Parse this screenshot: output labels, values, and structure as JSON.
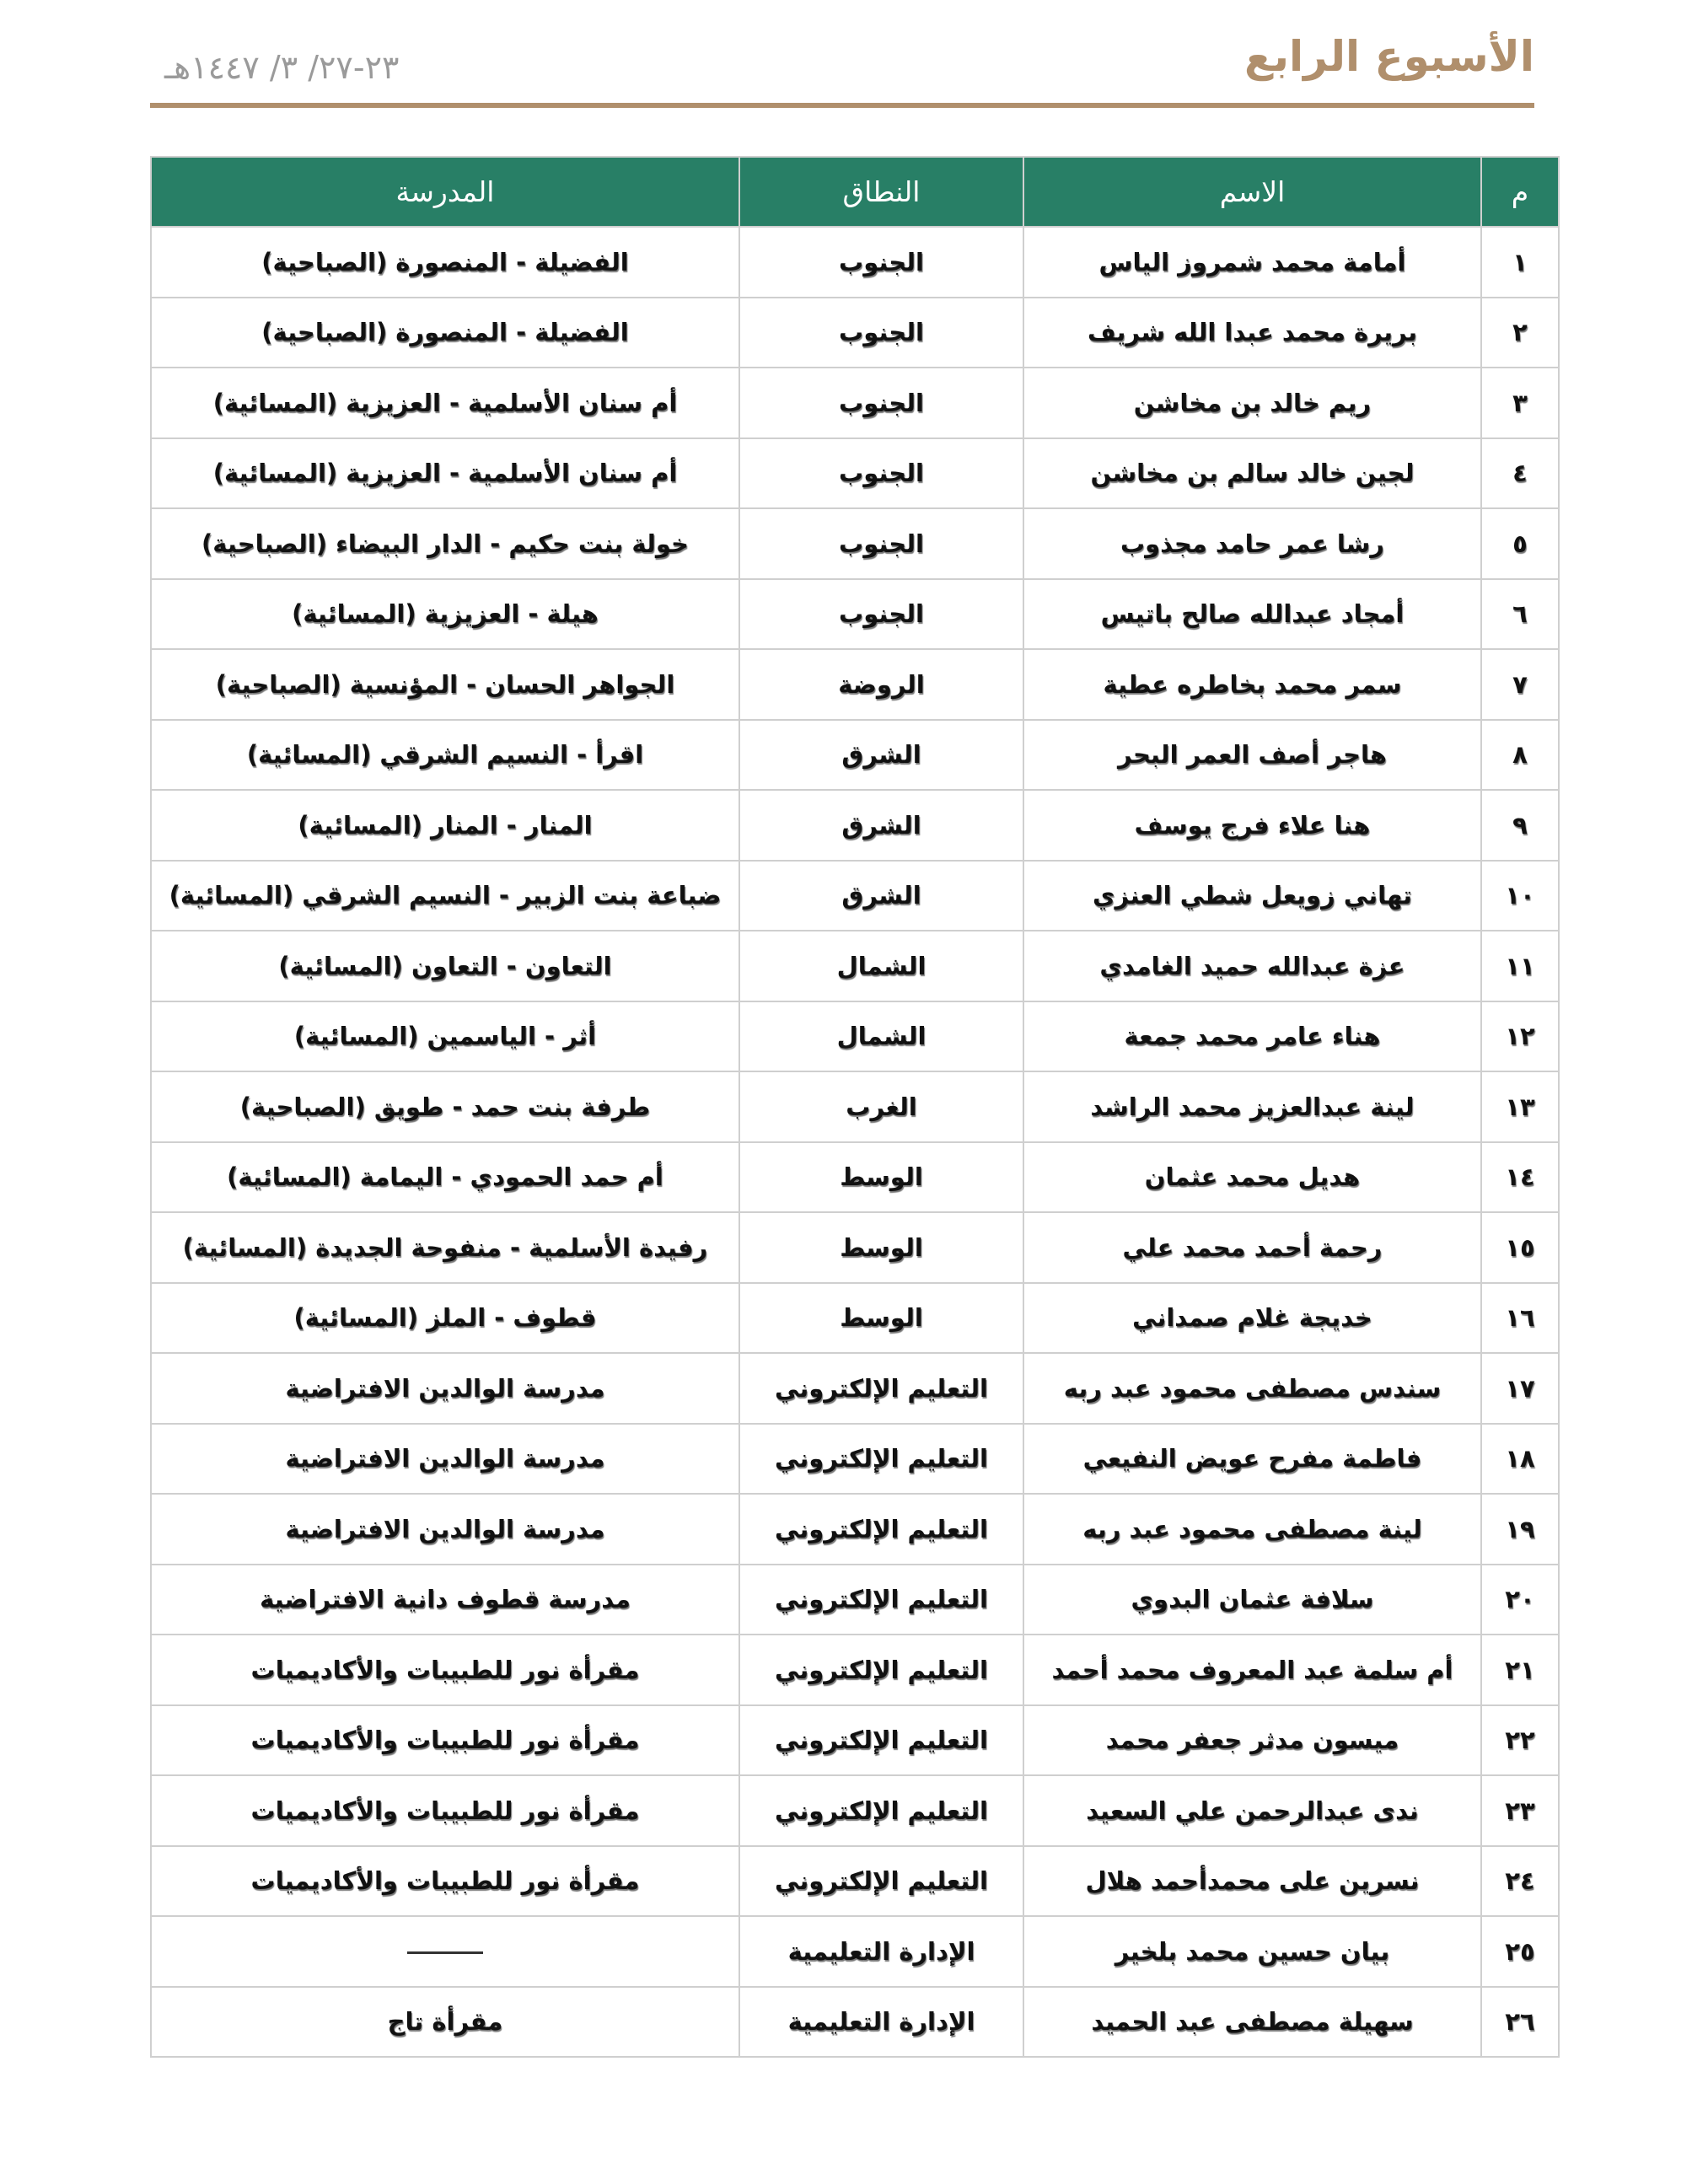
{
  "header": {
    "title": "الأسبوع الرابع",
    "date": "٢٣-٢٧/ ٣/ ١٤٤٧هـ"
  },
  "table": {
    "columns": [
      "م",
      "الاسم",
      "النطاق",
      "المدرسة"
    ],
    "rows": [
      [
        "١",
        "أمامة محمد شمروز الياس",
        "الجنوب",
        "الفضيلة - المنصورة (الصباحية)"
      ],
      [
        "٢",
        "بريرة محمد عبدا الله شريف",
        "الجنوب",
        "الفضيلة - المنصورة (الصباحية)"
      ],
      [
        "٣",
        "ريم خالد بن مخاشن",
        "الجنوب",
        "أم سنان الأسلمية - العزيزية (المسائية)"
      ],
      [
        "٤",
        "لجين خالد سالم بن مخاشن",
        "الجنوب",
        "أم سنان الأسلمية - العزيزية (المسائية)"
      ],
      [
        "٥",
        "رشا عمر حامد مجذوب",
        "الجنوب",
        "خولة بنت حكيم - الدار البيضاء (الصباحية)"
      ],
      [
        "٦",
        "أمجاد عبدالله صالح باتيس",
        "الجنوب",
        "هيلة - العزيزية (المسائية)"
      ],
      [
        "٧",
        "سمر محمد بخاطره عطية",
        "الروضة",
        "الجواهر الحسان - المؤنسية (الصباحية)"
      ],
      [
        "٨",
        "هاجر أصف العمر البحر",
        "الشرق",
        "اقرأ - النسيم الشرقي (المسائية)"
      ],
      [
        "٩",
        "هنا علاء فرج يوسف",
        "الشرق",
        "المنار - المنار (المسائية)"
      ],
      [
        "١٠",
        "تهاني زويعل شطي العنزي",
        "الشرق",
        "ضباعة بنت الزبير - النسيم الشرقي (المسائية)"
      ],
      [
        "١١",
        "عزة عبدالله حميد الغامدي",
        "الشمال",
        "التعاون - التعاون (المسائية)"
      ],
      [
        "١٢",
        "هناء عامر محمد جمعة",
        "الشمال",
        "أثر - الياسمين (المسائية)"
      ],
      [
        "١٣",
        "لينة عبدالعزيز محمد الراشد",
        "الغرب",
        "طرفة بنت حمد - طويق (الصباحية)"
      ],
      [
        "١٤",
        "هديل محمد عثمان",
        "الوسط",
        "أم حمد الحمودي - اليمامة (المسائية)"
      ],
      [
        "١٥",
        "رحمة أحمد محمد علي",
        "الوسط",
        "رفيدة الأسلمية - منفوحة الجديدة (المسائية)"
      ],
      [
        "١٦",
        "خديجة غلام صمداني",
        "الوسط",
        "قطوف - الملز (المسائية)"
      ],
      [
        "١٧",
        "سندس مصطفى محمود عبد ربه",
        "التعليم الإلكتروني",
        "مدرسة الوالدين الافتراضية"
      ],
      [
        "١٨",
        "فاطمة مفرح عويض النفيعي",
        "التعليم الإلكتروني",
        "مدرسة الوالدين الافتراضية"
      ],
      [
        "١٩",
        "لينة مصطفى محمود عبد ربه",
        "التعليم الإلكتروني",
        "مدرسة الوالدين الافتراضية"
      ],
      [
        "٢٠",
        "سلافة عثمان البدوي",
        "التعليم الإلكتروني",
        "مدرسة قطوف دانية الافتراضية"
      ],
      [
        "٢١",
        "أم سلمة عبد المعروف محمد أحمد",
        "التعليم الإلكتروني",
        "مقرأة نور للطبيبات والأكاديميات"
      ],
      [
        "٢٢",
        "ميسون مدثر جعفر محمد",
        "التعليم الإلكتروني",
        "مقرأة نور للطبيبات والأكاديميات"
      ],
      [
        "٢٣",
        "ندى عبدالرحمن علي السعيد",
        "التعليم الإلكتروني",
        "مقرأة نور للطبيبات والأكاديميات"
      ],
      [
        "٢٤",
        "نسرين على محمدأحمد هلال",
        "التعليم الإلكتروني",
        "مقرأة نور للطبيبات والأكاديميات"
      ],
      [
        "٢٥",
        "بيان حسين محمد بلخير",
        "الإدارة التعليمية",
        ""
      ],
      [
        "٢٦",
        "سهيلة مصطفى عبد الحميد",
        "الإدارة التعليمية",
        "مقرأة تاج"
      ]
    ]
  },
  "colors": {
    "accent": "#b08f6c",
    "header_bg": "#287f66"
  }
}
